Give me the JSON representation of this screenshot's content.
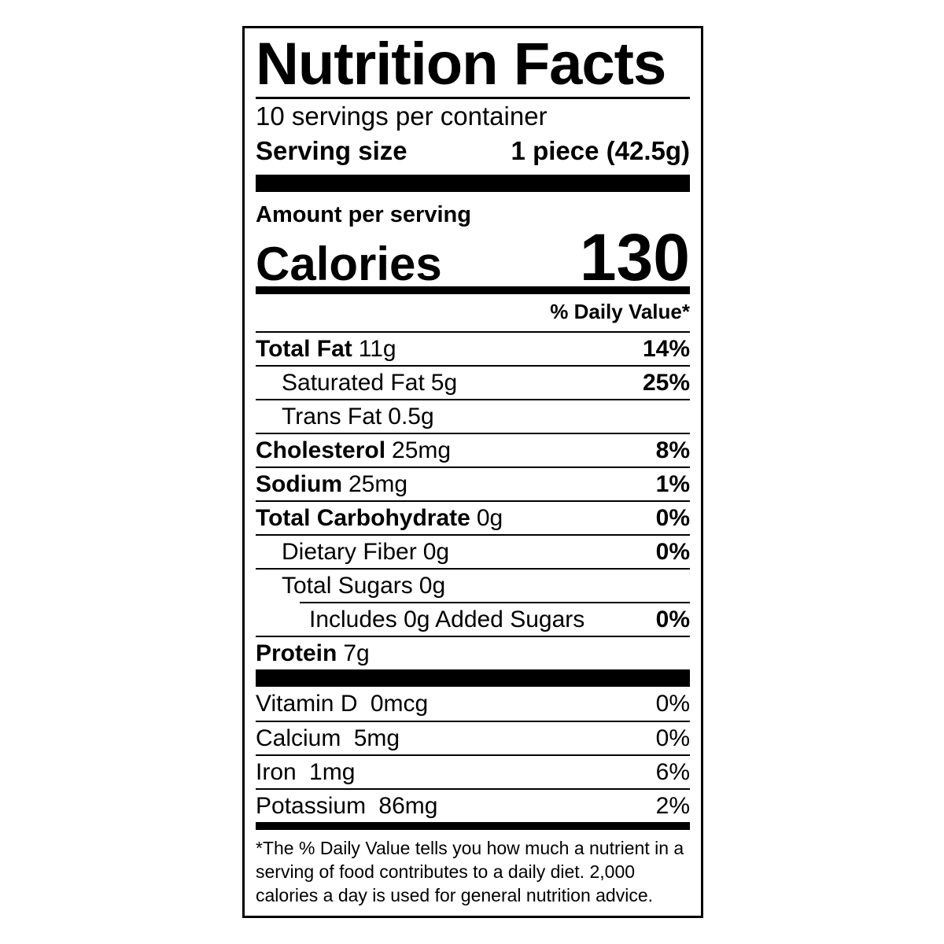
{
  "label": {
    "title": "Nutrition Facts",
    "servings_per_container": "10 servings per container",
    "serving_size_label": "Serving size",
    "serving_size_value": "1 piece (42.5g)",
    "amount_per_serving": "Amount per serving",
    "calories_label": "Calories",
    "calories_value": "130",
    "daily_value_header": "% Daily Value*",
    "nutrients": [
      {
        "name": "Total Fat",
        "amount": "11g",
        "dv": "14%"
      },
      {
        "name": "Saturated Fat",
        "amount": "5g",
        "dv": "25%"
      },
      {
        "name": "Trans Fat",
        "amount": "0.5g",
        "dv": ""
      },
      {
        "name": "Cholesterol",
        "amount": "25mg",
        "dv": "8%"
      },
      {
        "name": "Sodium",
        "amount": "25mg",
        "dv": "1%"
      },
      {
        "name": "Total Carbohydrate",
        "amount": "0g",
        "dv": "0%"
      },
      {
        "name": "Dietary Fiber",
        "amount": "0g",
        "dv": "0%"
      },
      {
        "name": "Total Sugars",
        "amount": "0g",
        "dv": ""
      },
      {
        "name": "Includes 0g Added Sugars",
        "amount": "",
        "dv": "0%"
      },
      {
        "name": "Protein",
        "amount": "7g",
        "dv": ""
      }
    ],
    "vitamins": [
      {
        "name": "Vitamin D",
        "amount": "0mcg",
        "dv": "0%"
      },
      {
        "name": "Calcium",
        "amount": "5mg",
        "dv": "0%"
      },
      {
        "name": "Iron",
        "amount": "1mg",
        "dv": "6%"
      },
      {
        "name": "Potassium",
        "amount": "86mg",
        "dv": "2%"
      }
    ],
    "footnote": "*The % Daily Value tells you how much a nutrient in a serving of food contributes to a daily diet. 2,000 calories a day is used for general nutrition advice.",
    "colors": {
      "ink": "#000000",
      "background": "#ffffff"
    }
  }
}
